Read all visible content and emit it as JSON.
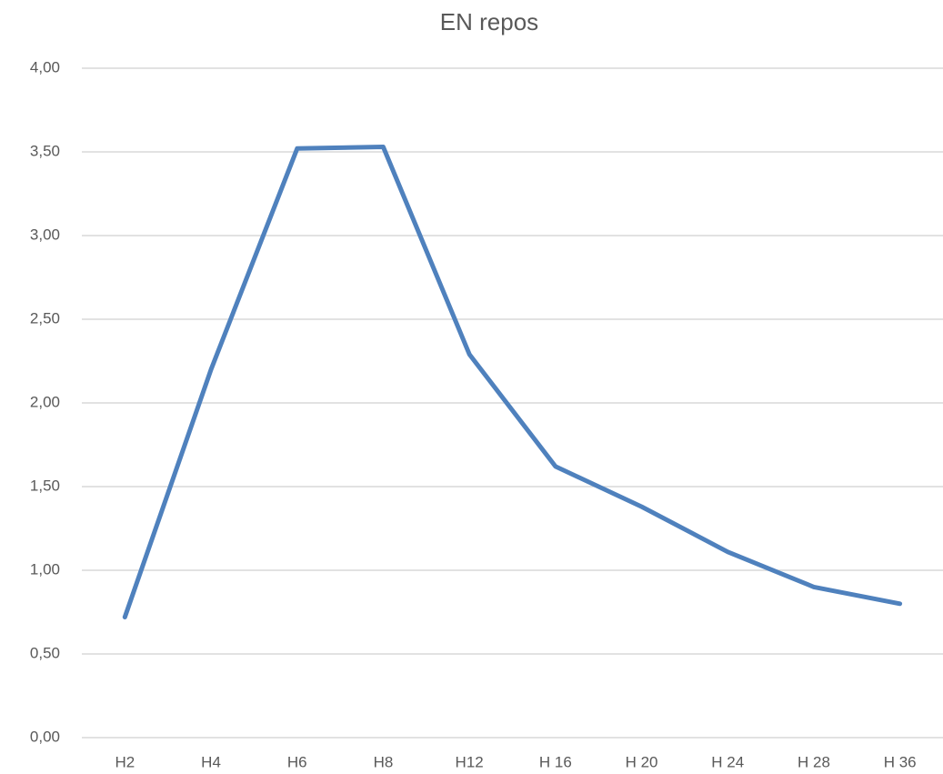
{
  "chart_data": {
    "type": "line",
    "title": "EN repos",
    "categories": [
      "H2",
      "H4",
      "H6",
      "H8",
      "H12",
      "H 16",
      "H 20",
      "H 24",
      "H 28",
      "H 36"
    ],
    "values": [
      0.72,
      2.2,
      3.52,
      3.53,
      2.29,
      1.62,
      1.38,
      1.11,
      0.9,
      0.8
    ],
    "color": "#4f81bd",
    "ylim": [
      0,
      4
    ],
    "yticks": [
      {
        "value": 0,
        "label": "0,00"
      },
      {
        "value": 0.5,
        "label": "0,50"
      },
      {
        "value": 1,
        "label": "1,00"
      },
      {
        "value": 1.5,
        "label": "1,50"
      },
      {
        "value": 2,
        "label": "2,00"
      },
      {
        "value": 2.5,
        "label": "2,50"
      },
      {
        "value": 3,
        "label": "3,00"
      },
      {
        "value": 3.5,
        "label": "3,50"
      },
      {
        "value": 4,
        "label": "4,00"
      }
    ],
    "grid": true
  }
}
